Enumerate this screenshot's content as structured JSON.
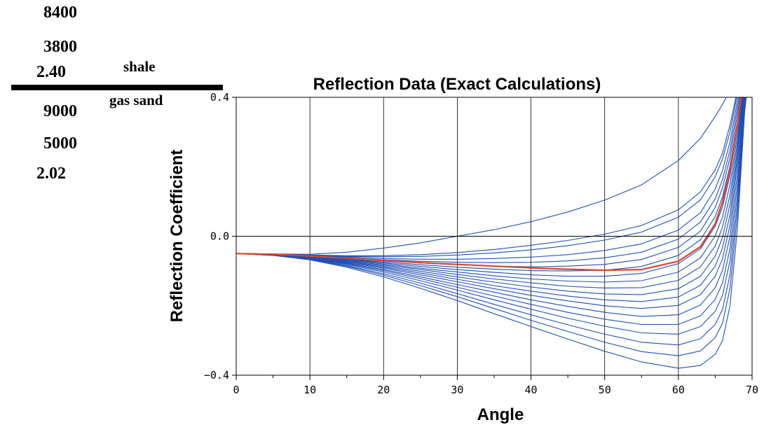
{
  "model": {
    "upper": {
      "vp": "8400",
      "vs": "3800",
      "rho": "2.40",
      "name": "shale"
    },
    "lower": {
      "vp": "9000",
      "vs": "5000",
      "rho": "2.02",
      "name": "gas sand"
    }
  },
  "chart_data": {
    "type": "line",
    "title": "Reflection Data (Exact Calculations)",
    "xlabel": "Angle",
    "ylabel": "Reflection Coefficient",
    "xlim": [
      0,
      70
    ],
    "ylim": [
      -0.4,
      0.4
    ],
    "x_ticks": [
      0,
      10,
      20,
      30,
      40,
      50,
      60,
      70
    ],
    "y_ticks": [
      -0.4,
      0.0,
      0.4
    ],
    "y_tick_labels": [
      "−0.4",
      "0.0",
      "0.4"
    ],
    "grid": "vertical",
    "x": [
      0,
      5,
      10,
      15,
      20,
      25,
      30,
      35,
      40,
      45,
      50,
      55,
      60,
      63,
      65,
      66,
      67,
      68,
      69,
      70
    ],
    "reference_line_y": 0.0,
    "series_color": "#1f4fb4",
    "highlight_color": "#e0442a",
    "series": [
      {
        "values": [
          -0.05,
          -0.051,
          -0.052,
          -0.046,
          -0.034,
          -0.019,
          0.0,
          0.019,
          0.042,
          0.07,
          0.104,
          0.148,
          0.218,
          0.282,
          0.345,
          0.38,
          0.42,
          0.46,
          0.5,
          0.54
        ]
      },
      {
        "values": [
          -0.05,
          -0.051,
          -0.054,
          -0.056,
          -0.056,
          -0.053,
          -0.047,
          -0.038,
          -0.026,
          -0.012,
          0.006,
          0.031,
          0.076,
          0.128,
          0.191,
          0.24,
          0.32,
          0.42,
          0.5,
          0.54
        ]
      },
      {
        "values": [
          -0.05,
          -0.051,
          -0.055,
          -0.058,
          -0.059,
          -0.058,
          -0.054,
          -0.048,
          -0.039,
          -0.027,
          -0.011,
          0.012,
          0.055,
          0.105,
          0.171,
          0.223,
          0.3,
          0.41,
          0.5,
          0.54
        ]
      },
      {
        "values": [
          -0.05,
          -0.051,
          -0.055,
          -0.06,
          -0.064,
          -0.066,
          -0.066,
          -0.064,
          -0.06,
          -0.053,
          -0.041,
          -0.022,
          0.018,
          0.068,
          0.136,
          0.19,
          0.272,
          0.39,
          0.5,
          0.54
        ]
      },
      {
        "values": [
          -0.05,
          -0.052,
          -0.056,
          -0.062,
          -0.068,
          -0.072,
          -0.075,
          -0.076,
          -0.075,
          -0.071,
          -0.062,
          -0.046,
          -0.008,
          0.041,
          0.108,
          0.164,
          0.248,
          0.37,
          0.5,
          0.54
        ]
      },
      {
        "values": [
          -0.05,
          -0.052,
          -0.057,
          -0.064,
          -0.071,
          -0.077,
          -0.082,
          -0.086,
          -0.088,
          -0.086,
          -0.081,
          -0.067,
          -0.032,
          0.015,
          0.083,
          0.14,
          0.226,
          0.35,
          0.49,
          0.54
        ]
      },
      {
        "values": [
          -0.05,
          -0.052,
          -0.058,
          -0.066,
          -0.074,
          -0.082,
          -0.089,
          -0.095,
          -0.099,
          -0.1,
          -0.098,
          -0.087,
          -0.055,
          -0.01,
          0.057,
          0.114,
          0.203,
          0.33,
          0.48,
          0.54
        ]
      },
      {
        "values": [
          -0.05,
          -0.052,
          -0.058,
          -0.067,
          -0.077,
          -0.087,
          -0.096,
          -0.104,
          -0.111,
          -0.115,
          -0.115,
          -0.107,
          -0.079,
          -0.036,
          0.029,
          0.085,
          0.176,
          0.31,
          0.47,
          0.54
        ]
      },
      {
        "values": [
          -0.05,
          -0.052,
          -0.059,
          -0.068,
          -0.08,
          -0.092,
          -0.103,
          -0.114,
          -0.123,
          -0.129,
          -0.132,
          -0.128,
          -0.103,
          -0.062,
          0.001,
          0.056,
          0.15,
          0.29,
          0.46,
          0.54
        ]
      },
      {
        "values": [
          -0.05,
          -0.053,
          -0.06,
          -0.07,
          -0.083,
          -0.096,
          -0.11,
          -0.123,
          -0.134,
          -0.144,
          -0.149,
          -0.148,
          -0.127,
          -0.088,
          -0.028,
          0.027,
          0.12,
          0.27,
          0.45,
          0.54
        ]
      },
      {
        "values": [
          -0.05,
          -0.053,
          -0.061,
          -0.072,
          -0.086,
          -0.101,
          -0.117,
          -0.132,
          -0.146,
          -0.158,
          -0.166,
          -0.168,
          -0.151,
          -0.115,
          -0.057,
          -0.003,
          0.092,
          0.25,
          0.44,
          0.54
        ]
      },
      {
        "values": [
          -0.05,
          -0.053,
          -0.061,
          -0.073,
          -0.089,
          -0.106,
          -0.124,
          -0.142,
          -0.158,
          -0.172,
          -0.183,
          -0.188,
          -0.175,
          -0.141,
          -0.086,
          -0.033,
          0.062,
          0.23,
          0.43,
          0.54
        ]
      },
      {
        "values": [
          -0.05,
          -0.053,
          -0.062,
          -0.075,
          -0.092,
          -0.111,
          -0.131,
          -0.151,
          -0.17,
          -0.186,
          -0.2,
          -0.208,
          -0.199,
          -0.168,
          -0.115,
          -0.064,
          0.032,
          0.21,
          0.42,
          0.54
        ]
      },
      {
        "values": [
          -0.05,
          -0.054,
          -0.063,
          -0.077,
          -0.096,
          -0.117,
          -0.139,
          -0.161,
          -0.183,
          -0.202,
          -0.219,
          -0.231,
          -0.226,
          -0.198,
          -0.148,
          -0.098,
          0.0,
          0.18,
          0.41,
          0.54
        ]
      },
      {
        "values": [
          -0.05,
          -0.054,
          -0.064,
          -0.079,
          -0.099,
          -0.122,
          -0.147,
          -0.172,
          -0.196,
          -0.219,
          -0.239,
          -0.254,
          -0.254,
          -0.229,
          -0.182,
          -0.134,
          -0.035,
          0.15,
          0.4,
          0.54
        ]
      },
      {
        "values": [
          -0.05,
          -0.054,
          -0.065,
          -0.081,
          -0.103,
          -0.128,
          -0.155,
          -0.183,
          -0.21,
          -0.236,
          -0.259,
          -0.278,
          -0.282,
          -0.26,
          -0.216,
          -0.17,
          -0.07,
          0.12,
          0.39,
          0.54
        ]
      },
      {
        "values": [
          -0.05,
          -0.055,
          -0.066,
          -0.084,
          -0.108,
          -0.135,
          -0.165,
          -0.196,
          -0.226,
          -0.255,
          -0.282,
          -0.305,
          -0.313,
          -0.295,
          -0.254,
          -0.21,
          -0.11,
          0.09,
          0.38,
          0.54
        ]
      },
      {
        "values": [
          -0.05,
          -0.055,
          -0.067,
          -0.086,
          -0.112,
          -0.142,
          -0.174,
          -0.208,
          -0.242,
          -0.274,
          -0.305,
          -0.332,
          -0.344,
          -0.33,
          -0.292,
          -0.25,
          -0.15,
          0.06,
          0.37,
          0.54
        ]
      },
      {
        "values": [
          -0.05,
          -0.055,
          -0.068,
          -0.089,
          -0.117,
          -0.15,
          -0.185,
          -0.223,
          -0.26,
          -0.296,
          -0.331,
          -0.362,
          -0.38,
          -0.372,
          -0.34,
          -0.3,
          -0.2,
          0.02,
          0.36,
          0.54
        ]
      },
      {
        "values": [
          -0.05,
          -0.052,
          -0.057,
          -0.063,
          -0.07,
          -0.076,
          -0.081,
          -0.086,
          -0.091,
          -0.095,
          -0.098,
          -0.096,
          -0.072,
          -0.03,
          0.036,
          0.1,
          0.192,
          0.32,
          0.48,
          0.54
        ],
        "highlight": true
      }
    ]
  }
}
